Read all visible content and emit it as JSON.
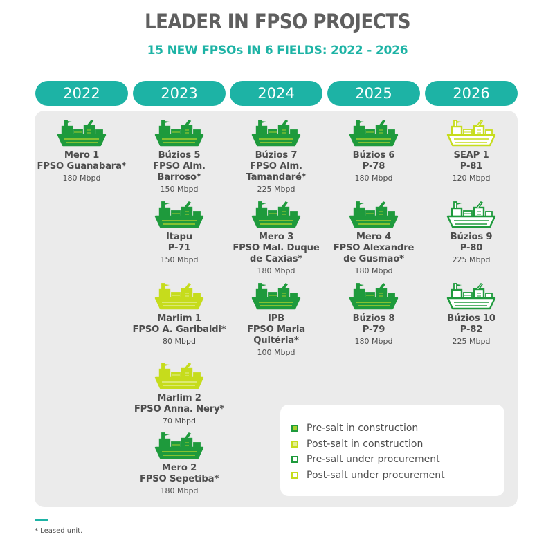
{
  "title": "LEADER IN FPSO PROJECTS",
  "subtitle": "15 NEW FPSOs IN 6 FIELDS: 2022 - 2026",
  "years": [
    "2022",
    "2023",
    "2024",
    "2025",
    "2026"
  ],
  "colors": {
    "accent": "#1db3a5",
    "pre_salt_green": "#1e9a3c",
    "post_salt_yellow": "#c6dc1c",
    "panel": "#ebebeb"
  },
  "units": [
    {
      "year": "2022",
      "name": [
        "Mero 1",
        "FPSO Guanabara*"
      ],
      "capacity": "180 Mbpd",
      "status": "pre-salt-construction"
    },
    {
      "year": "2023",
      "name": [
        "Búzios 5",
        "FPSO Alm. Barroso*"
      ],
      "capacity": "150 Mbpd",
      "status": "pre-salt-construction"
    },
    {
      "year": "2023",
      "name": [
        "Itapu",
        "P-71"
      ],
      "capacity": "150 Mbpd",
      "status": "pre-salt-construction"
    },
    {
      "year": "2023",
      "name": [
        "Marlim 1",
        "FPSO A. Garibaldi*"
      ],
      "capacity": "80 Mbpd",
      "status": "post-salt-construction"
    },
    {
      "year": "2023",
      "name": [
        "Marlim 2",
        "FPSO Anna. Nery*"
      ],
      "capacity": "70 Mbpd",
      "status": "post-salt-construction"
    },
    {
      "year": "2023",
      "name": [
        "Mero 2",
        "FPSO Sepetiba*"
      ],
      "capacity": "180 Mbpd",
      "status": "pre-salt-construction"
    },
    {
      "year": "2024",
      "name": [
        "Búzios 7",
        "FPSO Alm.",
        "Tamandaré*"
      ],
      "capacity": "225 Mbpd",
      "status": "pre-salt-construction"
    },
    {
      "year": "2024",
      "name": [
        "Mero 3",
        "FPSO Mal. Duque",
        "de Caxias*"
      ],
      "capacity": "180 Mbpd",
      "status": "pre-salt-construction"
    },
    {
      "year": "2024",
      "name": [
        "IPB",
        "FPSO Maria",
        "Quitéria*"
      ],
      "capacity": "100 Mbpd",
      "status": "pre-salt-construction"
    },
    {
      "year": "2025",
      "name": [
        "Búzios 6",
        "P-78"
      ],
      "capacity": "180 Mbpd",
      "status": "pre-salt-construction"
    },
    {
      "year": "2025",
      "name": [
        "Mero 4",
        "FPSO Alexandre",
        "de Gusmão*"
      ],
      "capacity": "180 Mbpd",
      "status": "pre-salt-construction"
    },
    {
      "year": "2025",
      "name": [
        "Búzios 8",
        "P-79"
      ],
      "capacity": "180 Mbpd",
      "status": "pre-salt-construction"
    },
    {
      "year": "2026",
      "name": [
        "SEAP 1",
        "P-81"
      ],
      "capacity": "120 Mbpd",
      "status": "post-salt-procurement"
    },
    {
      "year": "2026",
      "name": [
        "Búzios 9",
        "P-80"
      ],
      "capacity": "225 Mbpd",
      "status": "pre-salt-procurement"
    },
    {
      "year": "2026",
      "name": [
        "Búzios 10",
        "P-82"
      ],
      "capacity": "225 Mbpd",
      "status": "pre-salt-procurement"
    }
  ],
  "legend": [
    {
      "label": "Pre-salt in construction",
      "status": "pre-salt-construction"
    },
    {
      "label": "Post-salt in construction",
      "status": "post-salt-construction"
    },
    {
      "label": "Pre-salt under procurement",
      "status": "pre-salt-procurement"
    },
    {
      "label": "Post-salt under procurement",
      "status": "post-salt-procurement"
    }
  ],
  "footnote": "* Leased unit."
}
